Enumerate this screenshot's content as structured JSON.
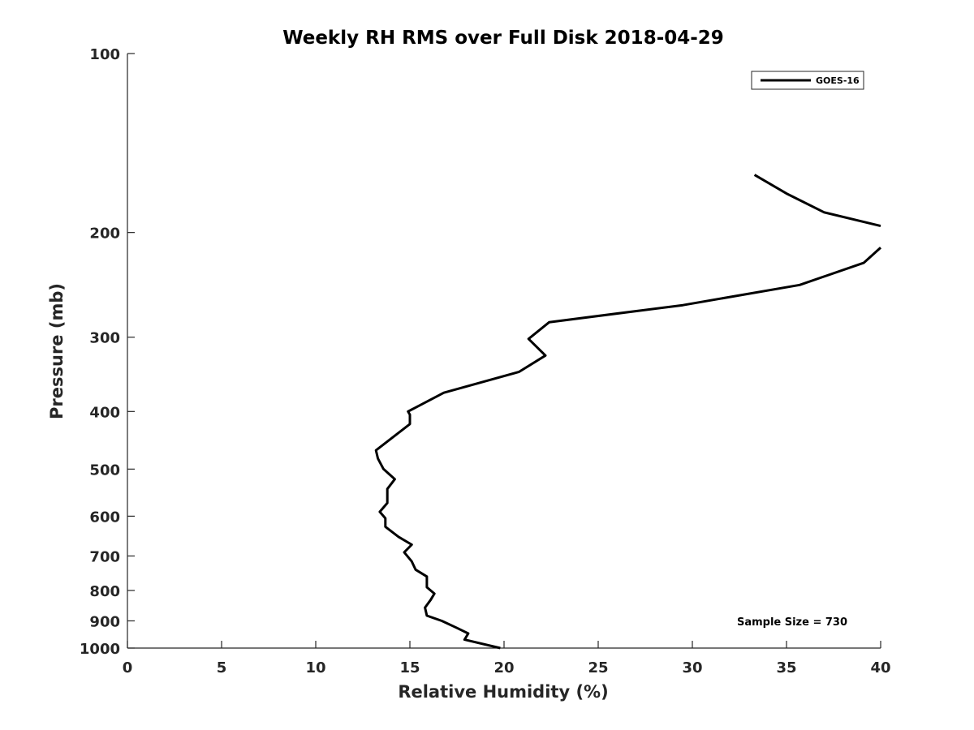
{
  "chart_data": {
    "type": "line",
    "title": "Weekly RH RMS over Full Disk 2018-04-29",
    "xlabel": "Relative Humidity (%)",
    "ylabel": "Pressure (mb)",
    "xlim": [
      0,
      40
    ],
    "ylim": [
      100,
      1000
    ],
    "yscale": "log",
    "y_reversed": true,
    "grid": false,
    "legend_position": "top-right",
    "x_ticks": [
      "0",
      "5",
      "10",
      "15",
      "20",
      "25",
      "30",
      "35",
      "40"
    ],
    "x_tick_values": [
      0,
      5,
      10,
      15,
      20,
      25,
      30,
      35,
      40
    ],
    "y_ticks": [
      "100",
      "200",
      "300",
      "400",
      "500",
      "600",
      "700",
      "800",
      "900",
      "1000"
    ],
    "y_tick_values": [
      100,
      200,
      300,
      400,
      500,
      600,
      700,
      800,
      900,
      1000
    ],
    "annotation": "Sample Size = 730",
    "series": [
      {
        "name": "GOES-16",
        "color": "#000000",
        "x": [
          33.3,
          35.0,
          37.0,
          40.0
        ],
        "y": [
          160,
          172,
          185,
          195
        ]
      },
      {
        "name": "GOES-16",
        "color": "#000000",
        "x": [
          40.0,
          39.1,
          35.7,
          29.5,
          22.4,
          21.3,
          22.2,
          20.8,
          16.8,
          14.9,
          15.0,
          15.0,
          13.2,
          13.3,
          13.6,
          14.2,
          13.8,
          13.8,
          13.4,
          13.7,
          13.7,
          14.4,
          15.1,
          14.7,
          15.1,
          15.3,
          15.9,
          15.9,
          16.3,
          16.1,
          15.8,
          15.9,
          16.7,
          17.5,
          18.1,
          17.9,
          19.8
        ],
        "y": [
          212,
          225,
          245,
          265,
          283,
          302,
          322,
          343,
          372,
          400,
          405,
          420,
          465,
          480,
          500,
          520,
          540,
          570,
          590,
          605,
          625,
          650,
          670,
          690,
          715,
          738,
          758,
          790,
          810,
          830,
          855,
          882,
          900,
          925,
          945,
          968,
          1000
        ]
      }
    ]
  }
}
